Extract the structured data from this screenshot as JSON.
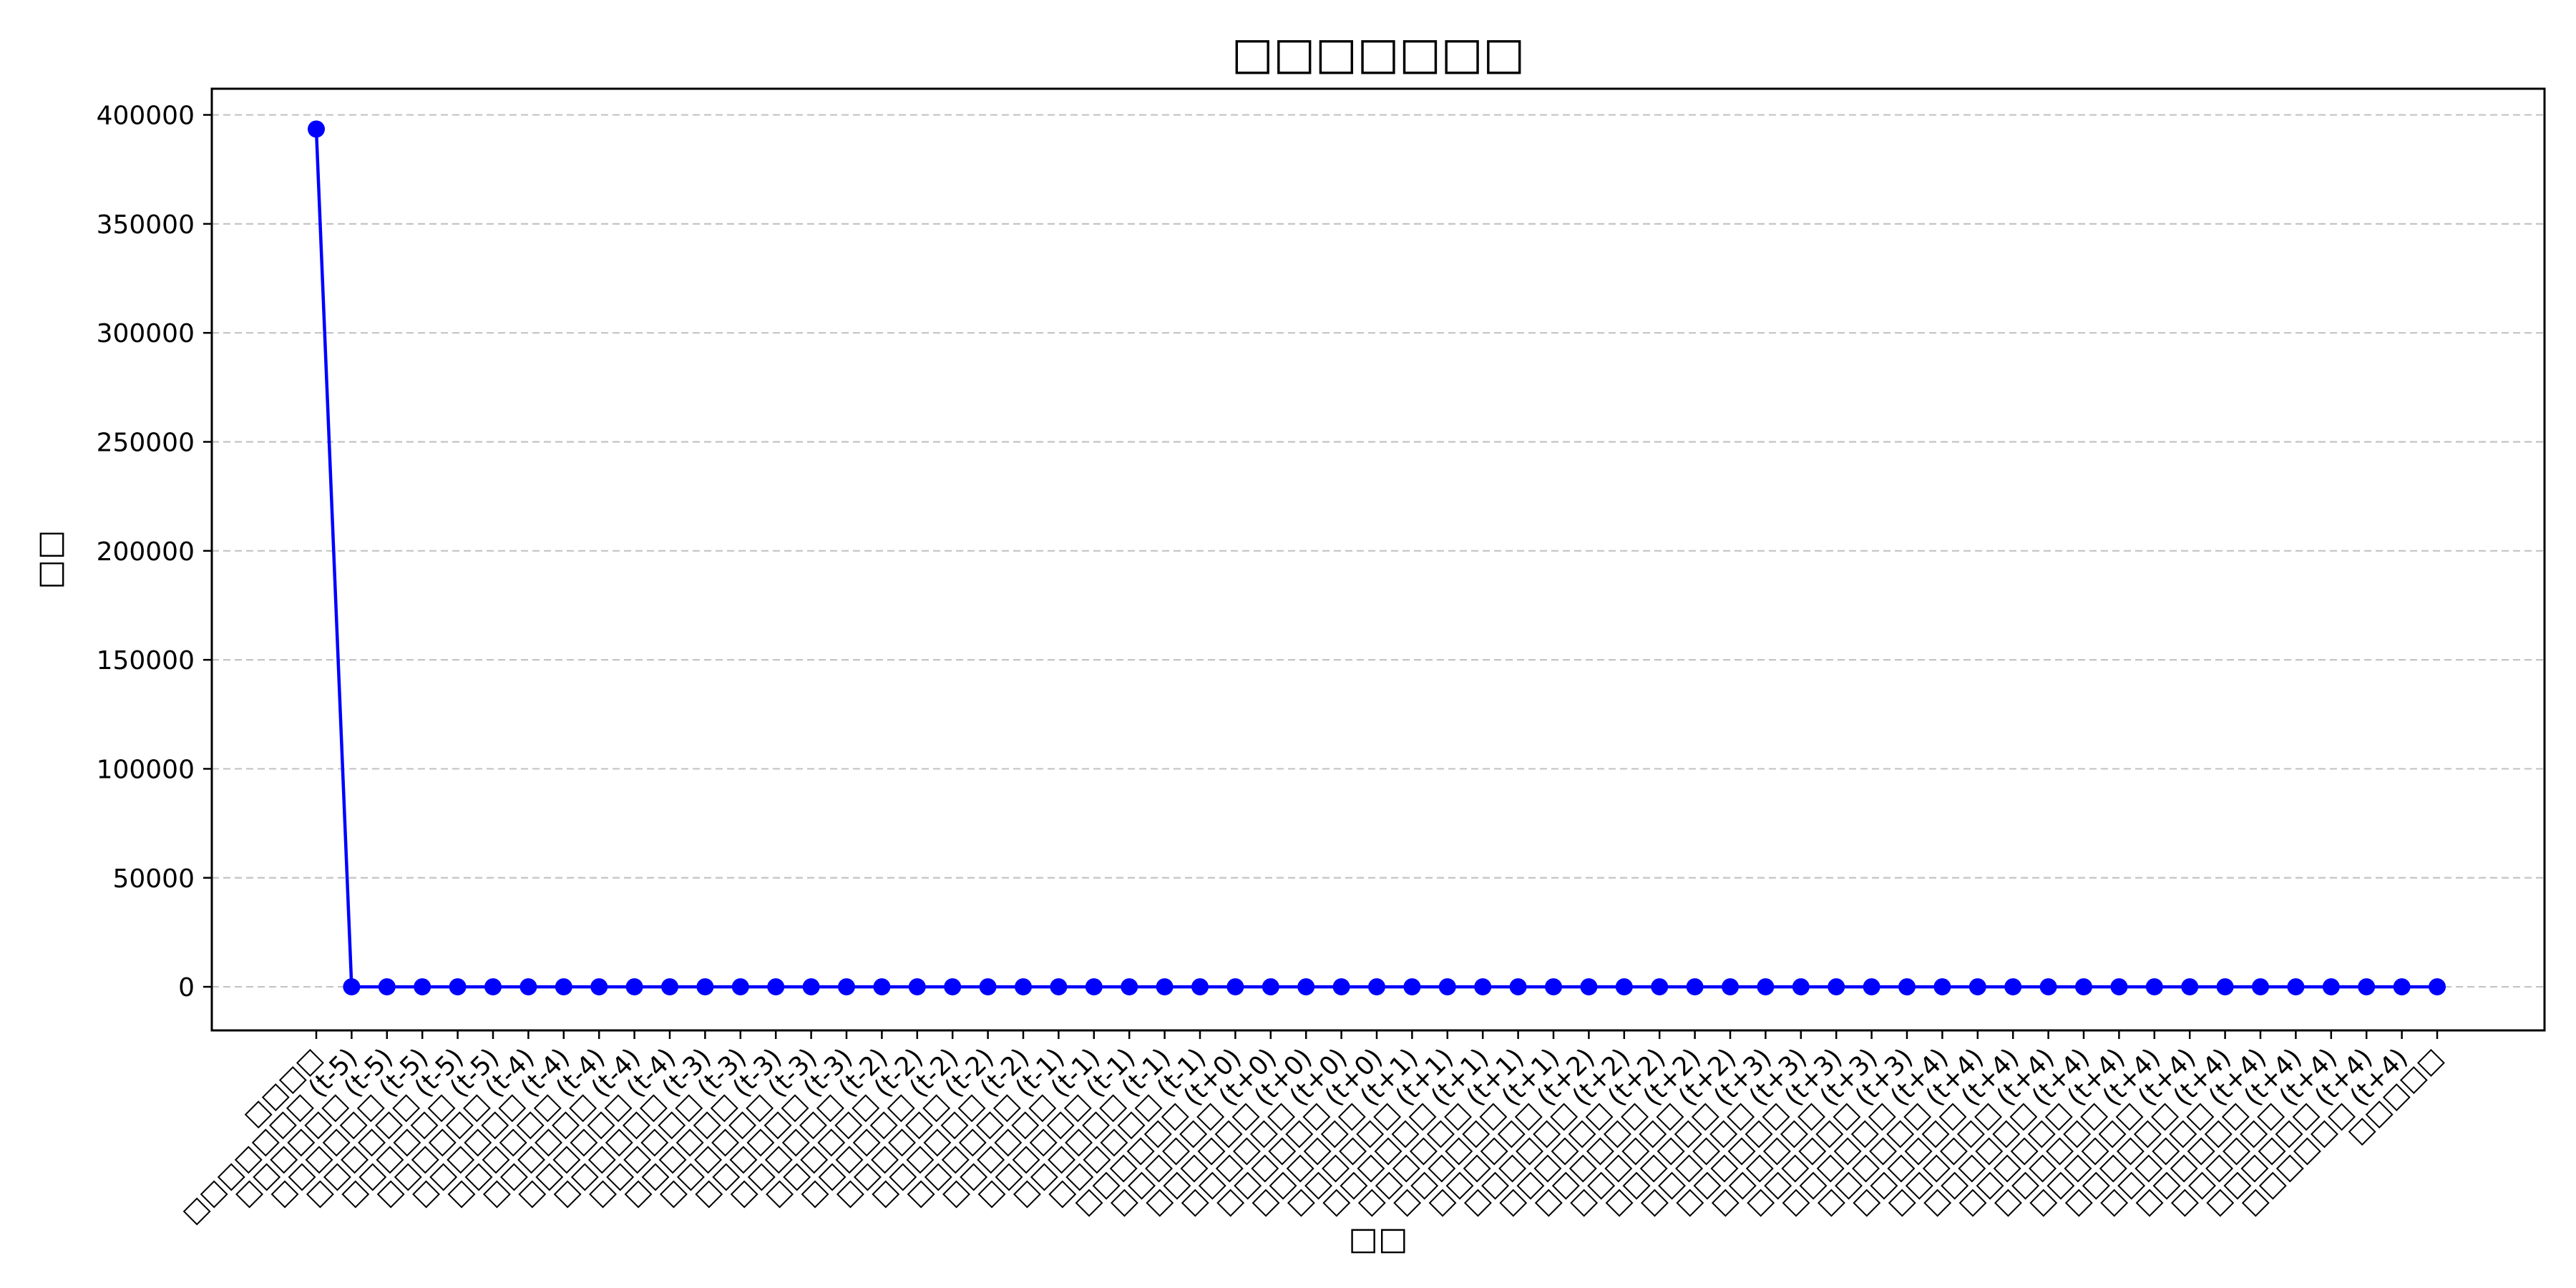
{
  "chart_data": {
    "type": "line",
    "title": "□□□□□□□",
    "xlabel": "□□",
    "ylabel": "□□",
    "ylim": [
      -20000,
      412000
    ],
    "yticks": [
      0,
      50000,
      100000,
      150000,
      200000,
      250000,
      300000,
      350000,
      400000
    ],
    "grid": {
      "y": true,
      "x": false,
      "style": "dashed"
    },
    "colors": {
      "line": "#0000ff",
      "marker": "#0000ff",
      "grid": "#c4c4c4"
    },
    "categories": [
      "□□□□",
      "□□□□□□□ (t-5)",
      "□□□□□□ (t-5)",
      "□□□□□□ (t-5)",
      "□□□□□□ (t-5)",
      "□□□□□□ (t-5)",
      "□□□□□□ (t-4)",
      "□□□□□□ (t-4)",
      "□□□□□□ (t-4)",
      "□□□□□□ (t-4)",
      "□□□□□□ (t-4)",
      "□□□□□□ (t-3)",
      "□□□□□□ (t-3)",
      "□□□□□□ (t-3)",
      "□□□□□□ (t-3)",
      "□□□□□□ (t-3)",
      "□□□□□□ (t-2)",
      "□□□□□□ (t-2)",
      "□□□□□□ (t-2)",
      "□□□□□□ (t-2)",
      "□□□□□□ (t-2)",
      "□□□□□□ (t-1)",
      "□□□□□□ (t-1)",
      "□□□□□□ (t-1)",
      "□□□□□□ (t-1)",
      "□□□□□□ (t-1)",
      "□□□□□□ (t+0)",
      "□□□□□□ (t+0)",
      "□□□□□□ (t+0)",
      "□□□□□□ (t+0)",
      "□□□□□□ (t+0)",
      "□□□□□□ (t+1)",
      "□□□□□□ (t+1)",
      "□□□□□□ (t+1)",
      "□□□□□□ (t+1)",
      "□□□□□□ (t+1)",
      "□□□□□□ (t+2)",
      "□□□□□□ (t+2)",
      "□□□□□□ (t+2)",
      "□□□□□□ (t+2)",
      "□□□□□□ (t+2)",
      "□□□□□□ (t+3)",
      "□□□□□□ (t+3)",
      "□□□□□□ (t+3)",
      "□□□□□□ (t+3)",
      "□□□□□□ (t+3)",
      "□□□□□□ (t+4)",
      "□□□□□□ (t+4)",
      "□□□□□□ (t+4)",
      "□□□□□□ (t+4)",
      "□□□□□□ (t+4)",
      "□□□□□□ (t+4)",
      "□□□□□□ (t+4)",
      "□□□□□□ (t+4)",
      "□□□□□□ (t+4)",
      "□□□□□□ (t+4)",
      "□□□□□□ (t+4)",
      "□□□□□□ (t+4)",
      "□□□□□□ (t+4)",
      "□□□□□□ (t+4)",
      "□□□□□"
    ],
    "series": [
      {
        "values": [
          393500,
          0,
          0,
          0,
          0,
          0,
          0,
          0,
          0,
          0,
          0,
          0,
          0,
          0,
          0,
          0,
          0,
          0,
          0,
          0,
          0,
          0,
          0,
          0,
          0,
          0,
          0,
          0,
          0,
          0,
          0,
          0,
          0,
          0,
          0,
          0,
          0,
          0,
          0,
          0,
          0,
          0,
          0,
          0,
          0,
          0,
          0,
          0,
          0,
          0,
          0,
          0,
          0,
          0,
          0,
          0,
          0,
          0,
          0,
          0,
          0
        ]
      }
    ]
  }
}
